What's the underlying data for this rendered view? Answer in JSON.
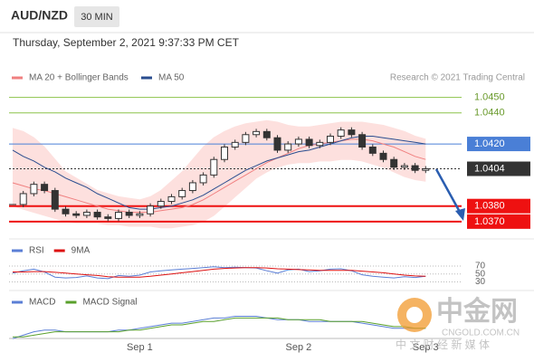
{
  "header": {
    "symbol": "AUD/NZD",
    "timeframe": "30 MIN",
    "datetime": "Thursday, September 2, 2021 9:37:33 PM CET",
    "credit": "Research © 2021 Trading Central"
  },
  "watermark": {
    "logo": "中金网",
    "site": "CNGOLD.COM.CN",
    "slogan": "中 文 财 经 新 媒 体"
  },
  "chart_data": [
    {
      "type": "candlestick",
      "categories": [
        null,
        null,
        null,
        null,
        null,
        null,
        null,
        null,
        null,
        null,
        null,
        null,
        "Sep 1",
        null,
        null,
        null,
        null,
        null,
        null,
        null,
        null,
        null,
        null,
        null,
        null,
        null,
        null,
        "Sep 2",
        null,
        null,
        null,
        null,
        null,
        null,
        null,
        null,
        null,
        null,
        null,
        "Sep 3"
      ],
      "close": [
        1.0381,
        1.0388,
        1.0394,
        1.039,
        1.0378,
        1.0375,
        1.0374,
        1.0376,
        1.0373,
        1.0372,
        1.0376,
        1.0374,
        1.0375,
        1.038,
        1.0383,
        1.0386,
        1.039,
        1.0395,
        1.04,
        1.041,
        1.0418,
        1.0421,
        1.0426,
        1.0428,
        1.0424,
        1.0416,
        1.042,
        1.0423,
        1.0419,
        1.0421,
        1.0425,
        1.0429,
        1.0426,
        1.0418,
        1.0414,
        1.041,
        1.0405,
        1.0406,
        1.0403,
        1.0404
      ],
      "candle_up": "#ffffff",
      "candle_down": "#333333",
      "series": [
        {
          "name": "MA 20 + Bollinger Bands",
          "color": "#f08080",
          "band_color": "#fde0de",
          "values": [
            1.0395,
            1.0393,
            1.0391,
            1.039,
            1.0388,
            1.0386,
            1.0384,
            1.0382,
            1.038,
            1.0378,
            1.0377,
            1.0376,
            1.0376,
            1.0376,
            1.0377,
            1.0378,
            1.0379,
            1.0381,
            1.0384,
            1.0388,
            1.0392,
            1.0396,
            1.04,
            1.0404,
            1.0408,
            1.0411,
            1.0414,
            1.0417,
            1.0419,
            1.042,
            1.0421,
            1.0422,
            1.0423,
            1.0423,
            1.0422,
            1.042,
            1.0418,
            1.0415,
            1.0412,
            1.041
          ],
          "upper": [
            1.043,
            1.0428,
            1.0424,
            1.0418,
            1.041,
            1.0402,
            1.0398,
            1.0394,
            1.039,
            1.0388,
            1.0386,
            1.0385,
            1.0384,
            1.0386,
            1.039,
            1.0396,
            1.0402,
            1.041,
            1.0418,
            1.0424,
            1.0428,
            1.0431,
            1.0433,
            1.0434,
            1.0435,
            1.0434,
            1.0432,
            1.0431,
            1.0431,
            1.0432,
            1.0433,
            1.0434,
            1.0434,
            1.0434,
            1.0433,
            1.0432,
            1.043,
            1.0428,
            1.0425,
            1.0423
          ],
          "lower": [
            1.038,
            1.0378,
            1.0376,
            1.0374,
            1.0372,
            1.037,
            1.0369,
            1.0369,
            1.0369,
            1.0368,
            1.0368,
            1.0367,
            1.0367,
            1.0367,
            1.0366,
            1.0366,
            1.0367,
            1.0368,
            1.037,
            1.0374,
            1.038,
            1.0386,
            1.0392,
            1.0398,
            1.0402,
            1.0405,
            1.0407,
            1.0408,
            1.0408,
            1.0409,
            1.0409,
            1.041,
            1.041,
            1.0409,
            1.0407,
            1.0405,
            1.0402,
            1.0399,
            1.0397,
            1.0396
          ]
        },
        {
          "name": "MA 50",
          "color": "#2a4d8f",
          "values": [
            1.0416,
            1.0412,
            1.0409,
            1.0405,
            1.0402,
            1.0398,
            1.0395,
            1.0392,
            1.0388,
            1.0385,
            1.0382,
            1.0379,
            1.0378,
            1.0378,
            1.0379,
            1.038,
            1.0382,
            1.0384,
            1.0387,
            1.0391,
            1.0395,
            1.0399,
            1.0403,
            1.0406,
            1.0409,
            1.0411,
            1.0413,
            1.0415,
            1.0416,
            1.0418,
            1.042,
            1.0422,
            1.0424,
            1.0425,
            1.0425,
            1.0424,
            1.0423,
            1.0422,
            1.0421,
            1.042
          ]
        }
      ],
      "levels": [
        {
          "value": 1.045,
          "label": "1.0450",
          "color": "#8bc34a",
          "style": "text"
        },
        {
          "value": 1.044,
          "label": "1.0440",
          "color": "#8bc34a",
          "style": "text"
        },
        {
          "value": 1.042,
          "label": "1.0420",
          "color": "#4a7fd6",
          "style": "box"
        },
        {
          "value": 1.0404,
          "label": "1.0404",
          "color": "#333333",
          "style": "current"
        },
        {
          "value": 1.038,
          "label": "1.0380",
          "color": "#ee1111",
          "style": "box"
        },
        {
          "value": 1.037,
          "label": "1.0370",
          "color": "#ee1111",
          "style": "box"
        }
      ],
      "ylim": [
        1.036,
        1.0469
      ]
    },
    {
      "type": "line",
      "series": [
        {
          "name": "RSI",
          "color": "#5b7fd6",
          "values": [
            52,
            58,
            62,
            55,
            42,
            40,
            41,
            45,
            40,
            38,
            46,
            44,
            47,
            55,
            58,
            60,
            62,
            64,
            66,
            68,
            66,
            67,
            66,
            65,
            58,
            52,
            60,
            62,
            56,
            58,
            62,
            63,
            58,
            48,
            44,
            42,
            40,
            43,
            41,
            44
          ]
        },
        {
          "name": "9MA",
          "color": "#dd1111",
          "values": [
            55,
            55,
            56,
            56,
            54,
            52,
            50,
            48,
            46,
            43,
            42,
            42,
            42,
            44,
            47,
            50,
            53,
            56,
            59,
            62,
            64,
            65,
            66,
            66,
            65,
            63,
            62,
            61,
            60,
            59,
            59,
            59,
            59,
            57,
            55,
            53,
            50,
            47,
            45,
            44
          ]
        }
      ],
      "ylim": [
        15,
        95
      ],
      "yticks": [
        30,
        50,
        70
      ]
    },
    {
      "type": "line",
      "series": [
        {
          "name": "MACD",
          "color": "#5b7fd6",
          "values": [
            -0.0008,
            -0.0006,
            -0.0004,
            -0.0003,
            -0.0003,
            -0.0004,
            -0.0004,
            -0.0004,
            -0.0004,
            -0.0004,
            -0.0003,
            -0.0003,
            -0.0002,
            -0.0001,
            0,
            0.0001,
            0.0001,
            0.0002,
            0.0003,
            0.0004,
            0.0004,
            0.0005,
            0.0005,
            0.0005,
            0.0004,
            0.0003,
            0.0003,
            0.0003,
            0.0002,
            0.0002,
            0.0002,
            0.0002,
            0.0002,
            0.0001,
            0,
            -0.0001,
            -0.0002,
            -0.0002,
            -0.0002,
            -0.0002
          ]
        },
        {
          "name": "MACD Signal",
          "color": "#5aa02c",
          "values": [
            -0.0007,
            -0.0007,
            -0.0006,
            -0.0005,
            -0.0004,
            -0.0004,
            -0.0004,
            -0.0004,
            -0.0004,
            -0.0004,
            -0.0004,
            -0.0003,
            -0.0003,
            -0.0002,
            -0.0001,
            0,
            0,
            0.0001,
            0.0002,
            0.0002,
            0.0003,
            0.0004,
            0.0004,
            0.0004,
            0.0004,
            0.0004,
            0.0003,
            0.0003,
            0.0003,
            0.0003,
            0.0002,
            0.0002,
            0.0002,
            0.0002,
            0.0001,
            0,
            -0.0001,
            -0.0001,
            -0.0002,
            -0.0002
          ]
        }
      ],
      "ylim": [
        -0.001,
        0.001
      ]
    }
  ]
}
